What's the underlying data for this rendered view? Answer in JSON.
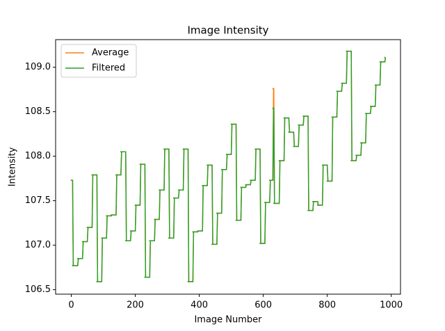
{
  "chart_data": {
    "type": "step",
    "title": "Image Intensity",
    "x_label": "Image Number",
    "y_label": "Intensity",
    "x": [
      0,
      4,
      20,
      35,
      50,
      65,
      80,
      95,
      110,
      125,
      140,
      155,
      170,
      185,
      200,
      215,
      230,
      245,
      260,
      275,
      290,
      305,
      320,
      335,
      350,
      365,
      380,
      395,
      410,
      425,
      440,
      455,
      470,
      485,
      500,
      515,
      530,
      545,
      560,
      575,
      590,
      605,
      620,
      630,
      633,
      650,
      665,
      680,
      695,
      710,
      725,
      740,
      755,
      770,
      785,
      800,
      815,
      830,
      845,
      860,
      875,
      890,
      905,
      920,
      935,
      950,
      965,
      980
    ],
    "series": [
      {
        "name": "Average",
        "color": "#ff7f0e",
        "values": [
          107.73,
          106.77,
          106.85,
          107.04,
          107.2,
          107.79,
          106.59,
          107.08,
          107.33,
          107.34,
          107.79,
          108.05,
          107.05,
          107.16,
          107.45,
          107.91,
          106.64,
          107.05,
          107.29,
          107.62,
          108.08,
          107.08,
          107.53,
          107.62,
          108.08,
          106.59,
          107.15,
          107.16,
          107.67,
          107.9,
          107.01,
          107.36,
          107.85,
          108.02,
          108.36,
          107.28,
          107.65,
          107.68,
          107.73,
          108.08,
          107.02,
          107.48,
          107.73,
          108.76,
          107.47,
          107.95,
          108.43,
          108.27,
          108.11,
          108.35,
          108.45,
          107.39,
          107.49,
          107.45,
          107.9,
          107.72,
          108.44,
          108.73,
          108.82,
          109.18,
          107.95,
          108.01,
          108.15,
          108.48,
          108.56,
          108.8,
          109.06,
          109.11
        ]
      },
      {
        "name": "Filtered",
        "color": "#2ca02c",
        "values": [
          107.73,
          106.77,
          106.85,
          107.04,
          107.2,
          107.79,
          106.59,
          107.08,
          107.33,
          107.34,
          107.79,
          108.05,
          107.05,
          107.16,
          107.45,
          107.91,
          106.64,
          107.05,
          107.29,
          107.62,
          108.08,
          107.08,
          107.53,
          107.62,
          108.08,
          106.59,
          107.15,
          107.16,
          107.67,
          107.9,
          107.01,
          107.36,
          107.85,
          108.02,
          108.36,
          107.28,
          107.65,
          107.68,
          107.73,
          108.08,
          107.02,
          107.48,
          107.73,
          108.54,
          107.47,
          107.95,
          108.43,
          108.27,
          108.11,
          108.35,
          108.45,
          107.39,
          107.49,
          107.45,
          107.9,
          107.72,
          108.44,
          108.73,
          108.82,
          109.18,
          107.95,
          108.01,
          108.15,
          108.48,
          108.56,
          108.8,
          109.06,
          109.11
        ]
      }
    ],
    "xlim": [
      -49,
      1029
    ],
    "xticks": [
      0,
      200,
      400,
      600,
      800,
      1000
    ],
    "ylim": [
      106.45,
      109.31
    ],
    "yticks": [
      106.5,
      {
        "value": 107,
        "label": "107.0"
      },
      107.5,
      {
        "value": 108,
        "label": "108.0"
      },
      108.5,
      {
        "value": 109,
        "label": "109.0"
      }
    ],
    "legend": "upper left"
  }
}
